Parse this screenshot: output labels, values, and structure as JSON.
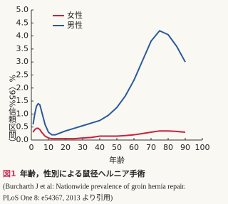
{
  "chart_data": {
    "type": "line",
    "x_label": "年齢",
    "y_label": "%（95%信頼区間）",
    "x": [
      1,
      2,
      3,
      4,
      5,
      6,
      8,
      10,
      12,
      14,
      16,
      20,
      25,
      30,
      35,
      40,
      45,
      50,
      55,
      60,
      65,
      70,
      75,
      80,
      85,
      90
    ],
    "series": [
      {
        "name": "女性",
        "color": "#c8203a",
        "values": [
          0.3,
          0.4,
          0.45,
          0.45,
          0.4,
          0.3,
          0.15,
          0.08,
          0.05,
          0.05,
          0.05,
          0.05,
          0.05,
          0.08,
          0.1,
          0.15,
          0.15,
          0.15,
          0.17,
          0.2,
          0.25,
          0.3,
          0.35,
          0.35,
          0.33,
          0.3
        ]
      },
      {
        "name": "男性",
        "color": "#2a5a9a",
        "values": [
          0.6,
          1.0,
          1.3,
          1.4,
          1.35,
          1.1,
          0.6,
          0.3,
          0.2,
          0.2,
          0.25,
          0.35,
          0.45,
          0.55,
          0.65,
          0.75,
          0.95,
          1.25,
          1.7,
          2.3,
          3.05,
          3.8,
          4.2,
          4.05,
          3.6,
          3.0
        ]
      }
    ],
    "xlim": [
      0,
      100
    ],
    "xticks": [
      0,
      10,
      20,
      30,
      40,
      50,
      60,
      70,
      80,
      90,
      100
    ],
    "ylim": [
      0,
      5
    ],
    "yticks": [
      {
        "value": 0,
        "label": "0.0"
      },
      0.5,
      {
        "value": 1,
        "label": "1.0"
      },
      1.5,
      {
        "value": 2,
        "label": "2.0"
      },
      2.5,
      {
        "value": 3,
        "label": "3.0"
      },
      3.5,
      {
        "value": 4,
        "label": "4.0"
      },
      4.5,
      {
        "value": 5,
        "label": "5.0"
      }
    ],
    "grid": false,
    "legend": "upper left"
  },
  "figure": {
    "label": "図1",
    "title": "年齢，性別による鼠径ヘルニア手術",
    "source": [
      "(Burcharth J et al: Nationwide prevalence of groin hernia repair.",
      "PLoS One 8: e54367, 2013 より引用)"
    ]
  }
}
